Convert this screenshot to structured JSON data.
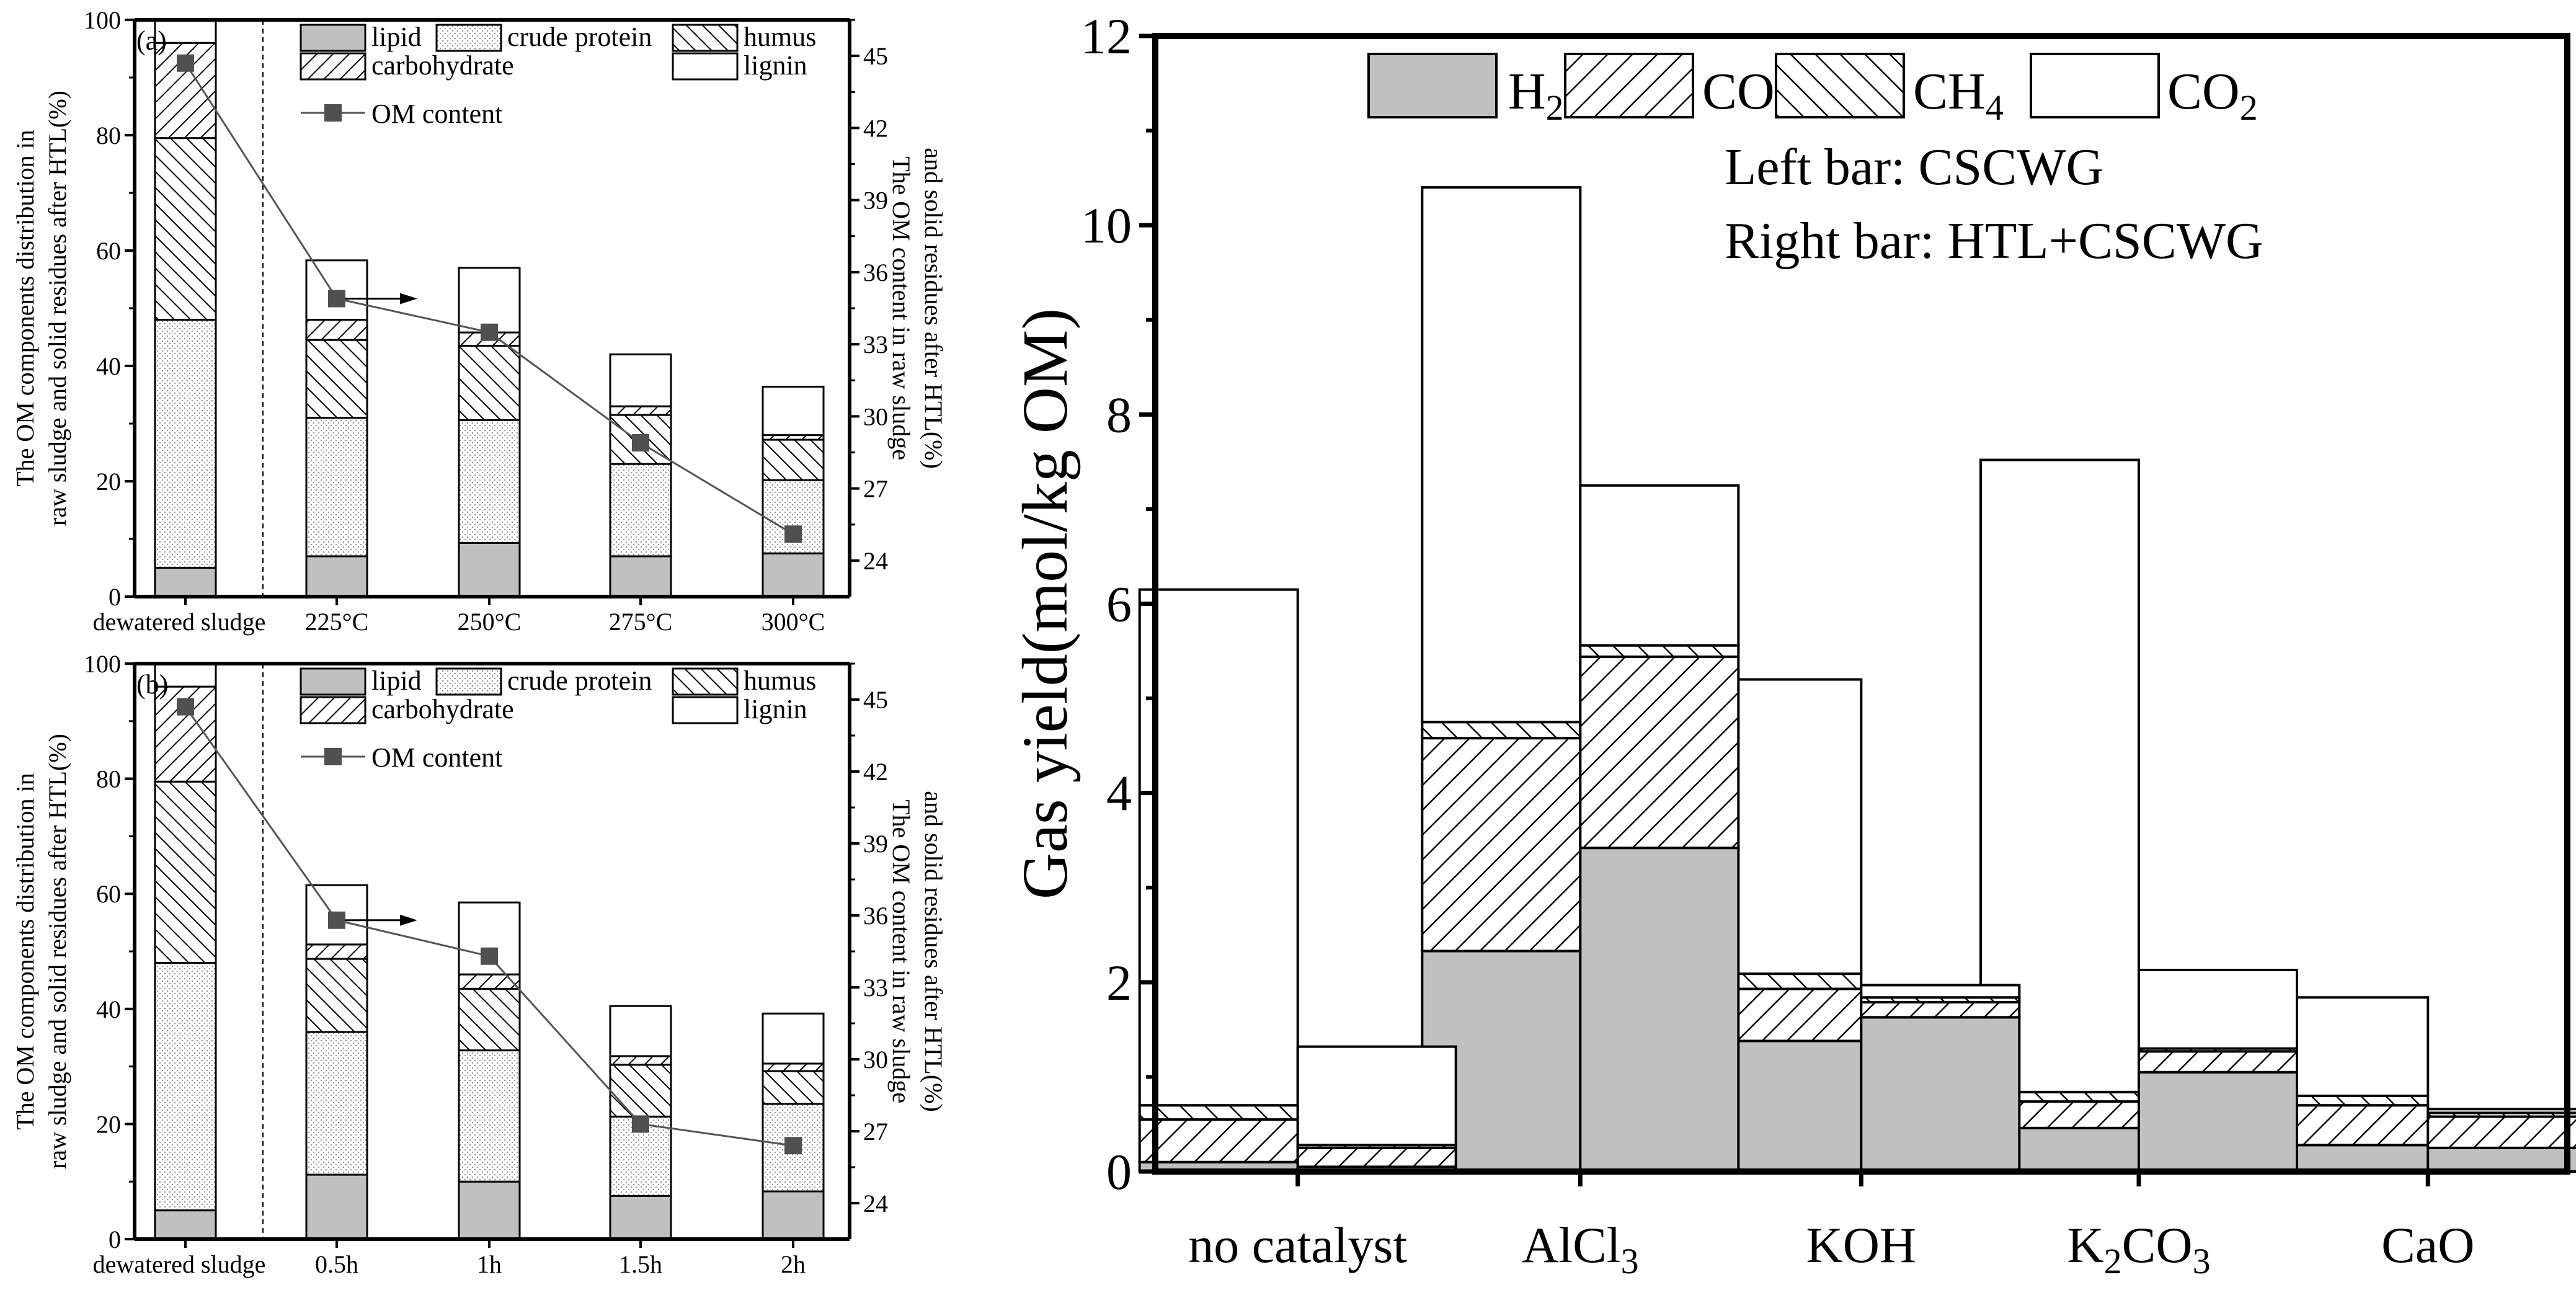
{
  "chart_data": [
    {
      "panel": "(a)",
      "type": "bar",
      "stacked": true,
      "categories": [
        "dewatered sludge",
        "225°C",
        "250°C",
        "275°C",
        "300°C"
      ],
      "ylabel": [
        "The OM components distribution in",
        "raw sludge and solid residues after HTL(%)"
      ],
      "ylabel_right": [
        "The OM content in raw sludge",
        "and solid residues after HTL(%)"
      ],
      "ylim": [
        0,
        100
      ],
      "yticks": [
        0,
        20,
        40,
        60,
        80,
        100
      ],
      "ylim_right": [
        22.5,
        46.5
      ],
      "yticks_right": [
        24,
        27,
        30,
        33,
        36,
        39,
        42,
        45
      ],
      "series": [
        {
          "name": "lipid",
          "values": [
            5,
            7,
            9.3,
            7,
            7.5
          ]
        },
        {
          "name": "crude protein",
          "values": [
            43,
            24,
            21.3,
            16,
            12.7
          ]
        },
        {
          "name": "humus",
          "values": [
            31.5,
            13.5,
            12.9,
            8.5,
            7
          ]
        },
        {
          "name": "carbohydrate",
          "values": [
            16.5,
            3.5,
            2.3,
            1.5,
            0.8
          ]
        },
        {
          "name": "lignin",
          "values": [
            4,
            10.3,
            11.2,
            9,
            8.4
          ]
        }
      ],
      "line_series": {
        "name": "OM content",
        "axis": "right",
        "values": [
          44.7,
          34.9,
          33.5,
          28.9,
          25.1
        ]
      },
      "legend": "top-right"
    },
    {
      "panel": "(b)",
      "type": "bar",
      "stacked": true,
      "categories": [
        "dewatered sludge",
        "0.5h",
        "1h",
        "1.5h",
        "2h"
      ],
      "ylabel": [
        "The OM components distribution in",
        "raw sludge and solid residues after HTL(%)"
      ],
      "ylabel_right": [
        "The OM content in raw sludge",
        "and solid residues after HTL(%)"
      ],
      "ylim": [
        0,
        100
      ],
      "yticks": [
        0,
        20,
        40,
        60,
        80,
        100
      ],
      "ylim_right": [
        22.5,
        46.5
      ],
      "yticks_right": [
        24,
        27,
        30,
        33,
        36,
        39,
        42,
        45
      ],
      "series": [
        {
          "name": "lipid",
          "values": [
            5,
            11.2,
            10,
            7.5,
            8.3
          ]
        },
        {
          "name": "crude protein",
          "values": [
            43,
            24.8,
            22.8,
            13.8,
            15.2
          ]
        },
        {
          "name": "humus",
          "values": [
            31.5,
            12.7,
            10.7,
            9,
            5.7
          ]
        },
        {
          "name": "carbohydrate",
          "values": [
            16.5,
            2.5,
            2.5,
            1.5,
            1.3
          ]
        },
        {
          "name": "lignin",
          "values": [
            4,
            10.3,
            12.5,
            8.7,
            8.7
          ]
        }
      ],
      "line_series": {
        "name": "OM content",
        "axis": "right",
        "values": [
          44.7,
          35.8,
          34.3,
          27.3,
          26.4
        ]
      },
      "legend": "top-right"
    },
    {
      "type": "bar",
      "stacked": true,
      "grouped": true,
      "categories": [
        "no catalyst",
        "AlCl",
        "KOH",
        "K",
        "CaO"
      ],
      "category_parts": [
        [
          "no catalyst"
        ],
        [
          "AlCl",
          "3"
        ],
        [
          "KOH"
        ],
        [
          "K",
          "2",
          "CO",
          "3"
        ],
        [
          "CaO"
        ]
      ],
      "ylabel": "Gas yield(mol/kg OM)",
      "ylim": [
        0,
        12
      ],
      "yticks": [
        0,
        2,
        4,
        6,
        8,
        10,
        12
      ],
      "annotations": [
        "Left bar: CSCWG",
        "Right bar: HTL+CSCWG"
      ],
      "groups": [
        "Left bar",
        "Right bar"
      ],
      "legend_labels": [
        [
          "H",
          "2"
        ],
        [
          "CO",
          ""
        ],
        [
          "CH",
          "4"
        ],
        [
          "CO",
          "2"
        ]
      ],
      "series": [
        {
          "name": "H2",
          "left": [
            0.1,
            2.33,
            1.38,
            0.46,
            0.28
          ],
          "right": [
            0.05,
            3.42,
            1.63,
            1.05,
            0.25
          ]
        },
        {
          "name": "CO",
          "left": [
            0.45,
            2.25,
            0.55,
            0.28,
            0.42
          ],
          "right": [
            0.2,
            2.02,
            0.16,
            0.22,
            0.33
          ]
        },
        {
          "name": "CH4",
          "left": [
            0.15,
            0.17,
            0.16,
            0.1,
            0.1
          ],
          "right": [
            0.03,
            0.12,
            0.05,
            0.03,
            0.04
          ]
        },
        {
          "name": "CO2",
          "left": [
            5.45,
            5.65,
            3.11,
            6.68,
            1.04
          ],
          "right": [
            1.04,
            1.69,
            0.13,
            0.83,
            0.04
          ]
        }
      ],
      "legend": "top"
    }
  ],
  "colors": {
    "lipid": "#c0c0c0",
    "H2": "#c0c0c0",
    "axis": "#000000",
    "line": "#555555",
    "marker": "#505050",
    "background": "#ffffff"
  },
  "patterns": {
    "lipid": "solid-gray",
    "crude protein": "dots",
    "humus": "back-diagonal",
    "carbohydrate": "forward-diagonal",
    "lignin": "empty",
    "H2": "solid-gray",
    "CO": "forward-diagonal",
    "CH4": "back-diagonal",
    "CO2": "empty"
  }
}
